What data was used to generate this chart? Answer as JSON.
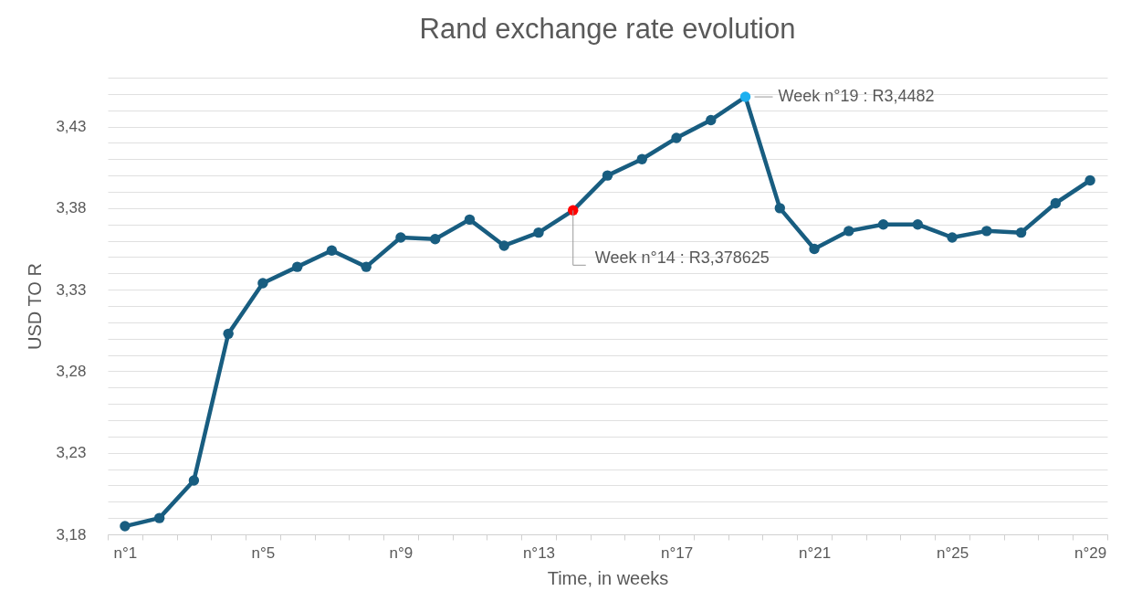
{
  "chart_data": {
    "type": "line",
    "title": "Rand exchange rate evolution",
    "xlabel": "Time, in weeks",
    "ylabel": "USD TO R",
    "categories": [
      "n°1",
      null,
      null,
      null,
      "n°5",
      null,
      null,
      null,
      "n°9",
      null,
      null,
      null,
      "n°13",
      null,
      null,
      null,
      "n°17",
      null,
      null,
      null,
      "n°21",
      null,
      null,
      null,
      "n°25",
      null,
      null,
      null,
      "n°29"
    ],
    "series": [
      {
        "color": "#185d80",
        "colors": [
          "#185d80",
          "#185d80",
          "#185d80",
          "#185d80",
          "#185d80",
          "#185d80",
          "#185d80",
          "#185d80",
          "#185d80",
          "#185d80",
          "#185d80",
          "#185d80",
          "#185d80",
          "#ff0000",
          "#185d80",
          "#185d80",
          "#185d80",
          "#185d80",
          "#1cb0f0",
          "#185d80",
          "#185d80",
          "#185d80",
          "#185d80",
          "#185d80",
          "#185d80",
          "#185d80",
          "#185d80",
          "#185d80",
          "#185d80"
        ],
        "values": [
          3.185,
          3.19,
          3.213,
          3.303,
          3.334,
          3.344,
          3.354,
          3.344,
          3.362,
          3.361,
          3.373,
          3.357,
          3.365,
          3.378625,
          3.4,
          3.41,
          3.423,
          3.434,
          3.4482,
          3.38,
          3.355,
          3.366,
          3.37,
          3.37,
          3.362,
          3.366,
          3.365,
          3.383,
          3.397
        ]
      }
    ],
    "ylim": [
      3.18,
      3.46
    ],
    "yticks": [
      {
        "value": 3.18,
        "label": "3,18"
      },
      {
        "value": 3.19,
        "label": null
      },
      {
        "value": 3.2,
        "label": null
      },
      {
        "value": 3.21,
        "label": null
      },
      {
        "value": 3.22,
        "label": null
      },
      {
        "value": 3.23,
        "label": "3,23"
      },
      {
        "value": 3.24,
        "label": null
      },
      {
        "value": 3.25,
        "label": null
      },
      {
        "value": 3.26,
        "label": null
      },
      {
        "value": 3.27,
        "label": null
      },
      {
        "value": 3.28,
        "label": "3,28"
      },
      {
        "value": 3.29,
        "label": null
      },
      {
        "value": 3.3,
        "label": null
      },
      {
        "value": 3.31,
        "label": null
      },
      {
        "value": 3.32,
        "label": null
      },
      {
        "value": 3.33,
        "label": "3,33"
      },
      {
        "value": 3.34,
        "label": null
      },
      {
        "value": 3.35,
        "label": null
      },
      {
        "value": 3.36,
        "label": null
      },
      {
        "value": 3.37,
        "label": null
      },
      {
        "value": 3.38,
        "label": "3,38"
      },
      {
        "value": 3.39,
        "label": null
      },
      {
        "value": 3.4,
        "label": null
      },
      {
        "value": 3.41,
        "label": null
      },
      {
        "value": 3.42,
        "label": null
      },
      {
        "value": 3.43,
        "label": "3,43"
      },
      {
        "value": 3.44,
        "label": null
      },
      {
        "value": 3.45,
        "label": null
      },
      {
        "value": 3.46,
        "label": null
      }
    ],
    "grid": "y",
    "marker": "circle",
    "line_style": "solid",
    "annotations": [
      "Week n°14 : R3,378625",
      "Week n°19 : R3,4482"
    ]
  }
}
